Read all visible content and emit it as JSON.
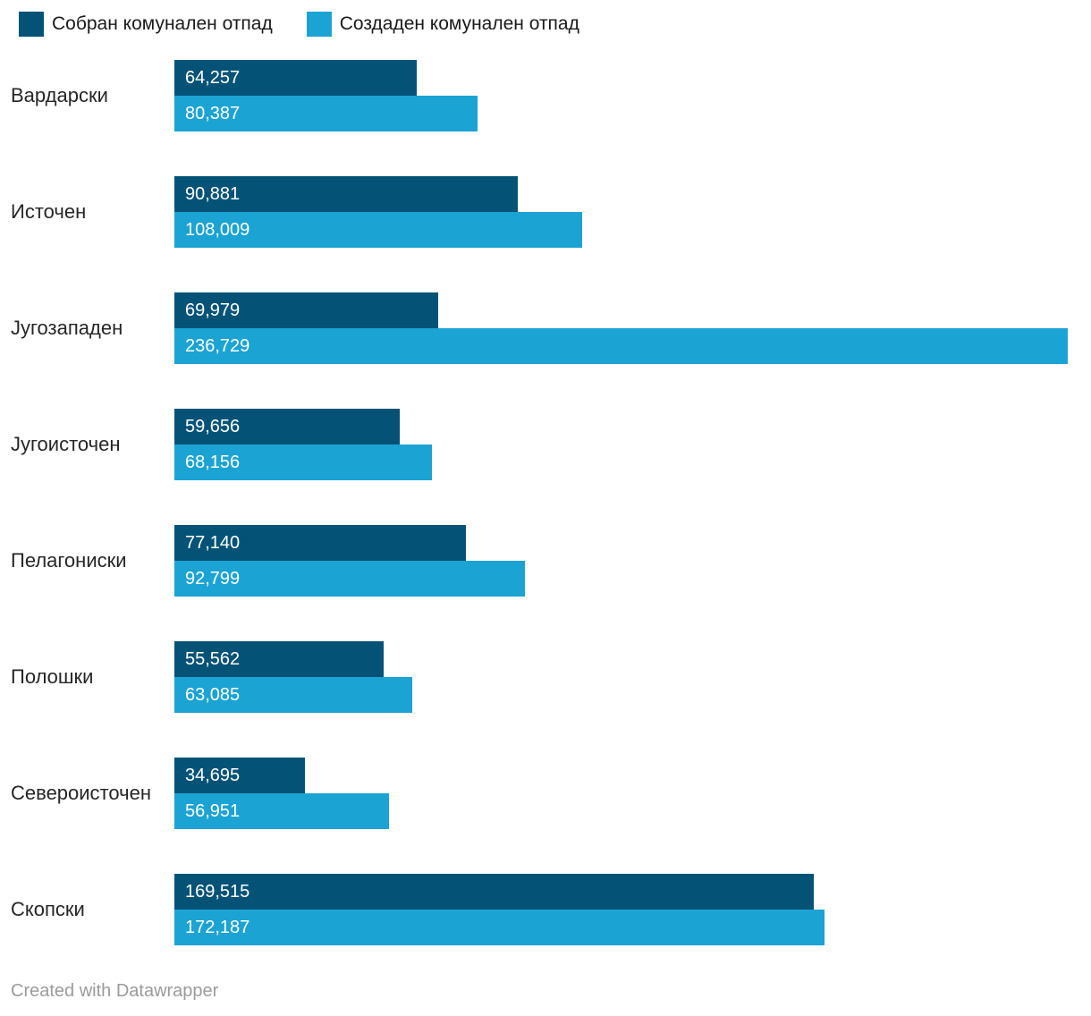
{
  "legend": {
    "items": [
      {
        "label": "Собран комунален отпад",
        "color": "#045377"
      },
      {
        "label": "Создаден комунален отпад",
        "color": "#1ba3d3"
      }
    ]
  },
  "chart_data": {
    "type": "bar",
    "orientation": "horizontal",
    "title": "",
    "categories": [
      "Вардарски",
      "Источен",
      "Југозападен",
      "Југоисточен",
      "Пелагониски",
      "Полошки",
      "Североисточен",
      "Скопски"
    ],
    "series": [
      {
        "name": "Собран комунален отпад",
        "color": "#045377",
        "values": [
          64257,
          90881,
          69979,
          59656,
          77140,
          55562,
          34695,
          169515
        ],
        "labels": [
          "64,257",
          "90,881",
          "69,979",
          "59,656",
          "77,140",
          "55,562",
          "34,695",
          "169,515"
        ]
      },
      {
        "name": "Создаден комунален отпад",
        "color": "#1ba3d3",
        "values": [
          80387,
          108009,
          236729,
          68156,
          92799,
          63085,
          56951,
          172187
        ],
        "labels": [
          "80,387",
          "108,009",
          "236,729",
          "68,156",
          "92,799",
          "63,085",
          "56,951",
          "172,187"
        ]
      }
    ],
    "xmax": 236729,
    "value_labels_inside": true,
    "legend_position": "top",
    "grid": false
  },
  "footer": {
    "credit": "Created with Datawrapper"
  }
}
